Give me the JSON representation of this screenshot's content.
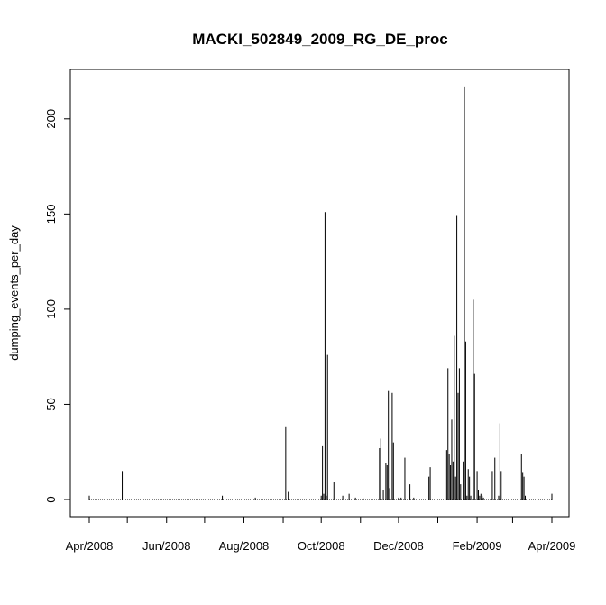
{
  "chart_data": {
    "type": "bar",
    "title": "MACKI_502849_2009_RG_DE_proc",
    "xlabel": "",
    "ylabel": "dumping_events_per_day",
    "x_range": [
      "2008-04-01",
      "2009-04-01"
    ],
    "ylim": [
      0,
      220
    ],
    "x_ticks": [
      "Apr/2008",
      "Jun/2008",
      "Aug/2008",
      "Oct/2008",
      "Dec/2008",
      "Feb/2009",
      "Apr/2009"
    ],
    "x_tick_dates": [
      "2008-04-01",
      "2008-06-01",
      "2008-08-01",
      "2008-10-01",
      "2008-12-01",
      "2009-02-01",
      "2009-04-01"
    ],
    "y_ticks": [
      0,
      50,
      100,
      150,
      200
    ],
    "grid": false,
    "legend": "none",
    "series": [
      {
        "x": [
          "2008-04-01",
          "2008-04-27",
          "2008-07-15",
          "2008-08-10",
          "2008-09-03",
          "2008-09-05",
          "2008-10-01",
          "2008-10-02",
          "2008-10-03",
          "2008-10-04",
          "2008-10-05",
          "2008-10-06",
          "2008-10-11",
          "2008-10-18",
          "2008-10-23",
          "2008-10-28",
          "2008-11-03",
          "2008-11-16",
          "2008-11-17",
          "2008-11-19",
          "2008-11-21",
          "2008-11-22",
          "2008-11-23",
          "2008-11-24",
          "2008-11-26",
          "2008-11-27",
          "2008-12-01",
          "2008-12-03",
          "2008-12-06",
          "2008-12-10",
          "2008-12-13",
          "2008-12-25",
          "2008-12-26",
          "2009-01-08",
          "2009-01-09",
          "2009-01-10",
          "2009-01-11",
          "2009-01-12",
          "2009-01-13",
          "2009-01-14",
          "2009-01-15",
          "2009-01-16",
          "2009-01-17",
          "2009-01-18",
          "2009-01-19",
          "2009-01-21",
          "2009-01-22",
          "2009-01-23",
          "2009-01-24",
          "2009-01-25",
          "2009-01-26",
          "2009-01-27",
          "2009-01-29",
          "2009-01-30",
          "2009-02-01",
          "2009-02-02",
          "2009-02-03",
          "2009-02-04",
          "2009-02-05",
          "2009-02-06",
          "2009-02-13",
          "2009-02-15",
          "2009-02-18",
          "2009-02-19",
          "2009-02-20",
          "2009-03-08",
          "2009-03-09",
          "2009-03-10",
          "2009-03-11",
          "2009-04-01"
        ],
        "values": [
          2,
          15,
          2,
          1,
          38,
          4,
          2,
          28,
          3,
          151,
          2,
          76,
          9,
          2,
          3,
          1,
          1,
          27,
          32,
          5,
          19,
          18,
          57,
          6,
          56,
          30,
          1,
          1,
          22,
          8,
          1,
          12,
          17,
          26,
          69,
          24,
          18,
          42,
          20,
          86,
          12,
          149,
          56,
          69,
          8,
          20,
          217,
          83,
          2,
          16,
          12,
          2,
          105,
          66,
          15,
          5,
          2,
          3,
          2,
          1,
          15,
          22,
          2,
          40,
          15,
          24,
          14,
          12,
          2,
          3
        ]
      }
    ]
  }
}
